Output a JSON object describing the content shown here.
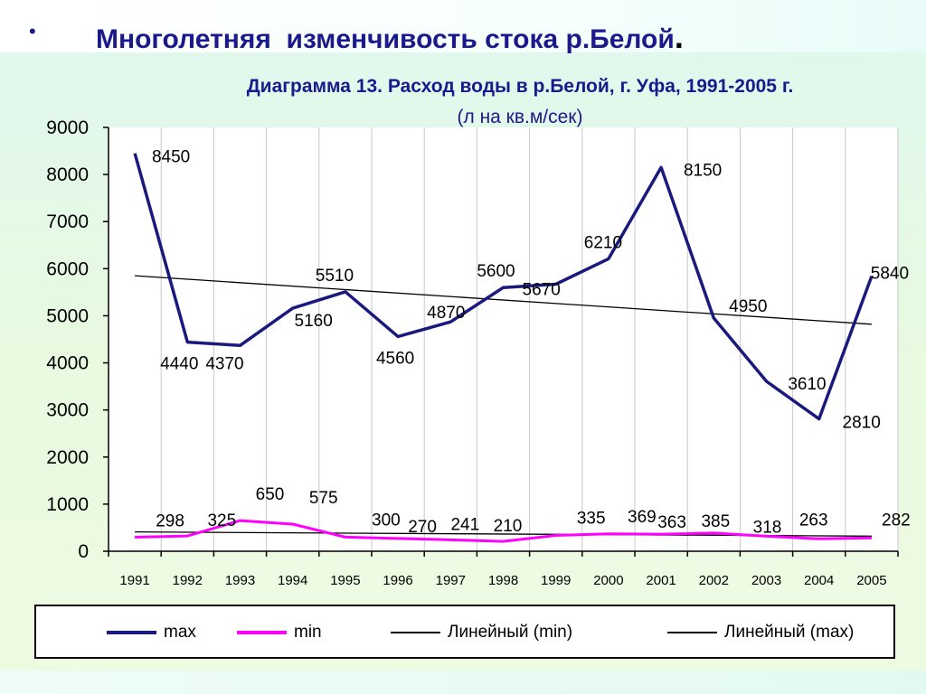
{
  "slide": {
    "bullet": "•",
    "title": "Многолетняя  изменчивость стока р.Белой",
    "title_period": "."
  },
  "chart_data": {
    "type": "line",
    "title": "Диаграмма 13. Расход воды в р.Белой, г. Уфа, 1991-2005 г.",
    "subtitle": "(л на кв.м/сек)",
    "categories": [
      "1991",
      "1992",
      "1993",
      "1994",
      "1995",
      "1996",
      "1997",
      "1998",
      "1999",
      "2000",
      "2001",
      "2002",
      "2003",
      "2004",
      "2005"
    ],
    "ylim": [
      0,
      9000
    ],
    "yticks": [
      0,
      1000,
      2000,
      3000,
      4000,
      5000,
      6000,
      7000,
      8000,
      9000
    ],
    "grid": "vertical",
    "legend_position": "bottom",
    "series": [
      {
        "name": "max",
        "color": "#1a1a7e",
        "values": [
          8450,
          4440,
          4370,
          5160,
          5510,
          4560,
          4870,
          5600,
          5670,
          6210,
          8150,
          4950,
          3610,
          2810,
          5840
        ],
        "data_labels": [
          "8450",
          "4440",
          "4370",
          "5160",
          "5510",
          "4560",
          "4870",
          "5600",
          "5670",
          "6210",
          "8150",
          "4950",
          "3610",
          "2810",
          "5840"
        ]
      },
      {
        "name": "min",
        "color": "#ff00ff",
        "values": [
          298,
          325,
          650,
          575,
          300,
          270,
          241,
          210,
          335,
          369,
          363,
          385,
          318,
          263,
          282
        ],
        "data_labels": [
          "298",
          "325",
          "650",
          "575",
          "300",
          "270",
          "241",
          "210",
          "335",
          "369",
          "363",
          "385",
          "318",
          "263",
          "282"
        ]
      }
    ],
    "trendlines": [
      {
        "name": "Линейный (min)",
        "of": "min",
        "color": "#000000",
        "start": 410,
        "end": 320
      },
      {
        "name": "Линейный (max)",
        "of": "max",
        "color": "#000000",
        "start": 5850,
        "end": 4820
      }
    ]
  }
}
